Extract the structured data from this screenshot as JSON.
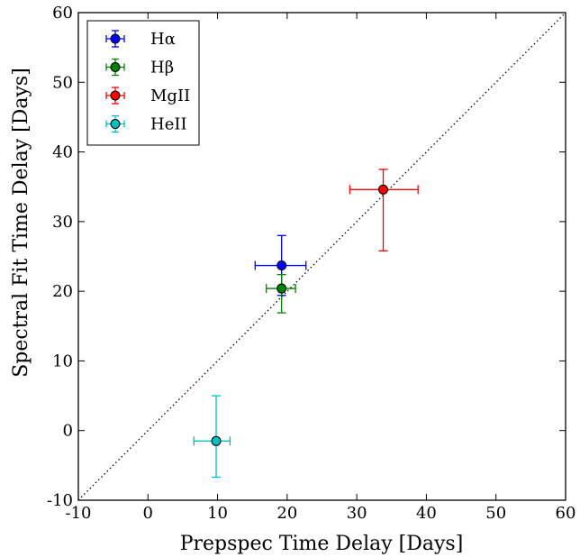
{
  "chart_data": {
    "type": "scatter",
    "title": "",
    "xlabel": "Prepspec Time Delay [Days]",
    "ylabel": "Spectral Fit Time Delay [Days]",
    "xlim": [
      -10,
      60
    ],
    "ylim": [
      -10,
      60
    ],
    "xticks": [
      -10,
      0,
      10,
      20,
      30,
      40,
      50,
      60
    ],
    "yticks": [
      -10,
      0,
      10,
      20,
      30,
      40,
      50,
      60
    ],
    "grid": false,
    "legend_position": "top-left",
    "reference_line": {
      "style": "dotted",
      "color": "#000000",
      "from": [
        -10,
        -10
      ],
      "to": [
        60,
        60
      ]
    },
    "series": [
      {
        "name": "Hα",
        "color": "#0000ff",
        "x": 19.2,
        "y": 23.7,
        "xerr": [
          3.8,
          3.5
        ],
        "yerr": [
          4.3,
          4.3
        ]
      },
      {
        "name": "Hβ",
        "color": "#008000",
        "x": 19.2,
        "y": 20.4,
        "xerr": [
          2.2,
          2.0
        ],
        "yerr": [
          3.5,
          2.0
        ]
      },
      {
        "name": "MgII",
        "color": "#ff0000",
        "x": 33.8,
        "y": 34.6,
        "xerr": [
          4.8,
          5.0
        ],
        "yerr": [
          8.8,
          2.9
        ]
      },
      {
        "name": "HeII",
        "color": "#00bfbf",
        "x": 9.8,
        "y": -1.5,
        "xerr": [
          3.2,
          2.0
        ],
        "yerr": [
          5.2,
          6.5
        ]
      }
    ]
  }
}
